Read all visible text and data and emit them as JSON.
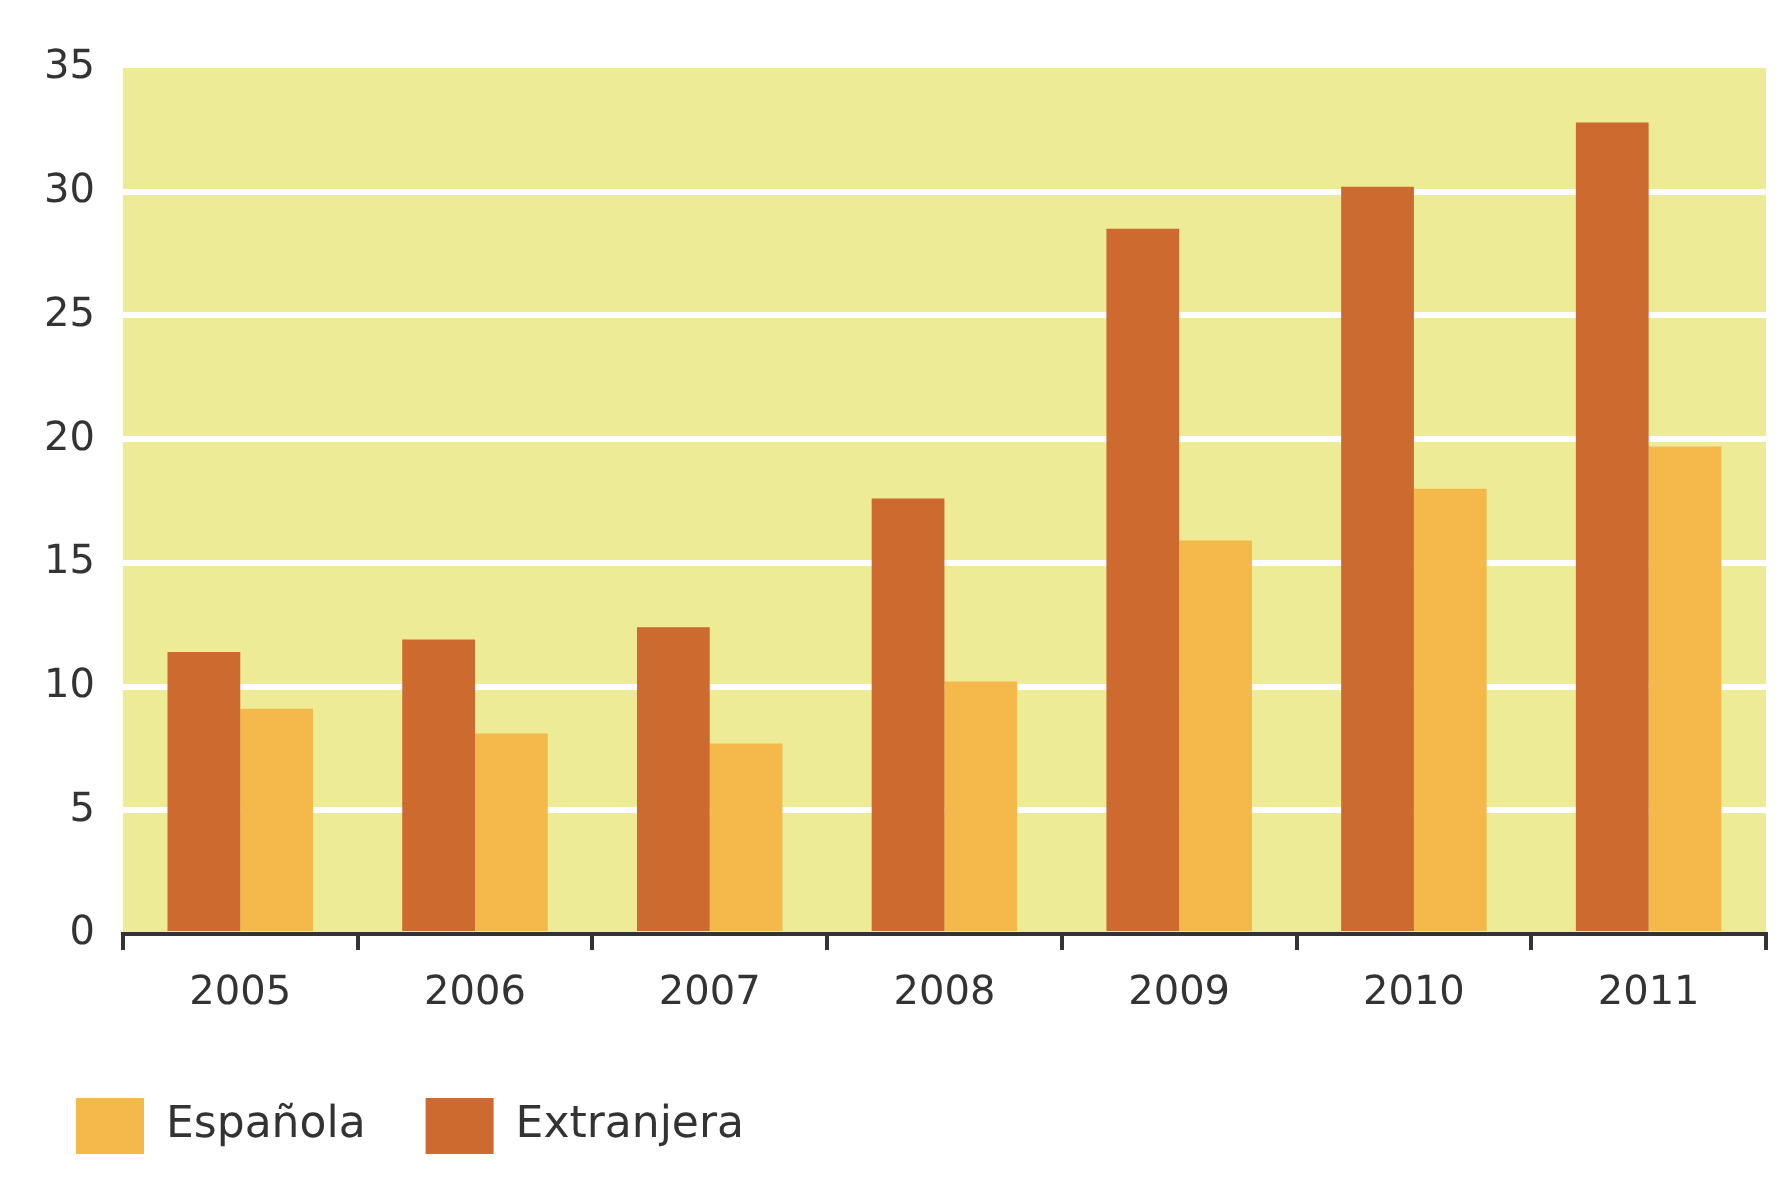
{
  "chart_data": {
    "type": "bar",
    "categories": [
      "2005",
      "2006",
      "2007",
      "2008",
      "2009",
      "2010",
      "2011"
    ],
    "series": [
      {
        "name": "Extranjera",
        "color": "#cc6a30",
        "values": [
          11.4,
          11.9,
          12.4,
          17.6,
          28.5,
          30.2,
          32.8
        ]
      },
      {
        "name": "Española",
        "color": "#f5b84a",
        "values": [
          9.1,
          8.1,
          7.7,
          10.2,
          15.9,
          18.0,
          19.7
        ]
      }
    ],
    "ylim": [
      0,
      35
    ],
    "yticks": [
      0,
      5,
      10,
      15,
      20,
      25,
      30,
      35
    ],
    "grid": "y",
    "legend": "bottom left"
  }
}
